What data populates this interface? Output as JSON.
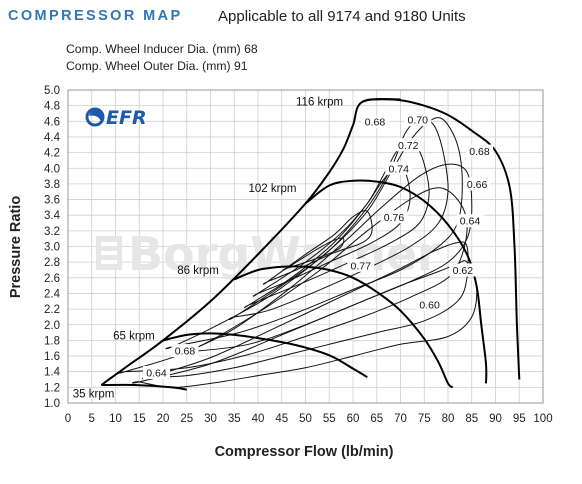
{
  "header": {
    "title": "COMPRESSOR MAP",
    "subtitle": "Applicable to all 9174 and 9180 Units"
  },
  "specs": {
    "inducer": "Comp. Wheel Inducer Dia. (mm) 68",
    "outer": "Comp. Wheel Outer Dia. (mm) 91"
  },
  "logo": {
    "text": "EFR",
    "icon": "turbo-swirl-icon",
    "color": "#1d5aa8"
  },
  "watermark": {
    "text": "BorgWarner"
  },
  "colors": {
    "title": "#2f77b8",
    "grid": "#cfcfcf",
    "lines": "#000000"
  },
  "chart_data": {
    "type": "line",
    "title": "",
    "xlabel": "Compressor Flow (lb/min)",
    "ylabel": "Pressure Ratio",
    "xlim": [
      0,
      100
    ],
    "ylim": [
      1.0,
      5.0
    ],
    "x_ticks": [
      "0",
      "5",
      "10",
      "15",
      "20",
      "25",
      "30",
      "35",
      "40",
      "45",
      "50",
      "55",
      "60",
      "65",
      "70",
      "75",
      "80",
      "85",
      "90",
      "95",
      "100"
    ],
    "y_ticks": [
      "1.0",
      "1.2",
      "1.4",
      "1.6",
      "1.8",
      "2.0",
      "2.2",
      "2.4",
      "2.6",
      "2.8",
      "3.0",
      "3.2",
      "3.4",
      "3.6",
      "3.8",
      "4.0",
      "4.2",
      "4.4",
      "4.6",
      "4.8",
      "5.0"
    ],
    "grid": true,
    "surge_line": {
      "name": "surge",
      "points": [
        [
          7,
          1.23
        ],
        [
          12,
          1.45
        ],
        [
          20,
          1.8
        ],
        [
          30,
          2.3
        ],
        [
          40,
          2.9
        ],
        [
          50,
          3.55
        ],
        [
          55,
          3.95
        ],
        [
          58,
          4.25
        ],
        [
          60,
          4.55
        ],
        [
          62,
          4.85
        ],
        [
          70,
          4.88
        ]
      ]
    },
    "speed_lines": [
      {
        "label": "35 krpm",
        "points": [
          [
            7,
            1.23
          ],
          [
            14,
            1.23
          ],
          [
            22,
            1.2
          ],
          [
            25,
            1.17
          ]
        ]
      },
      {
        "label": "65 krpm",
        "points": [
          [
            20,
            1.8
          ],
          [
            25,
            1.87
          ],
          [
            30,
            1.89
          ],
          [
            35,
            1.87
          ],
          [
            40,
            1.83
          ],
          [
            48,
            1.74
          ],
          [
            55,
            1.61
          ],
          [
            60,
            1.44
          ],
          [
            63,
            1.33
          ]
        ]
      },
      {
        "label": "86 krpm",
        "points": [
          [
            35,
            2.58
          ],
          [
            40,
            2.7
          ],
          [
            45,
            2.74
          ],
          [
            50,
            2.74
          ],
          [
            55,
            2.7
          ],
          [
            60,
            2.6
          ],
          [
            65,
            2.42
          ],
          [
            70,
            2.18
          ],
          [
            75,
            1.82
          ],
          [
            78,
            1.52
          ],
          [
            80,
            1.25
          ],
          [
            81,
            1.2
          ]
        ]
      },
      {
        "label": "102 krpm",
        "points": [
          [
            50,
            3.55
          ],
          [
            55,
            3.78
          ],
          [
            60,
            3.84
          ],
          [
            65,
            3.83
          ],
          [
            70,
            3.76
          ],
          [
            75,
            3.58
          ],
          [
            80,
            3.28
          ],
          [
            84,
            2.9
          ],
          [
            86,
            2.5
          ],
          [
            87,
            2.0
          ],
          [
            88,
            1.5
          ],
          [
            88,
            1.25
          ]
        ]
      },
      {
        "label": "116 krpm",
        "points": [
          [
            62,
            4.85
          ],
          [
            64,
            4.88
          ],
          [
            70,
            4.87
          ],
          [
            75,
            4.8
          ],
          [
            80,
            4.68
          ],
          [
            85,
            4.48
          ],
          [
            90,
            4.22
          ],
          [
            93,
            3.75
          ],
          [
            94,
            3.0
          ],
          [
            94.5,
            2.0
          ],
          [
            95,
            1.3
          ]
        ]
      }
    ],
    "efficiency_islands": [
      {
        "label": "0.60",
        "points": [
          [
            15,
            1.27
          ],
          [
            30,
            1.5
          ],
          [
            45,
            1.87
          ],
          [
            60,
            2.25
          ],
          [
            70,
            2.5
          ],
          [
            78,
            2.68
          ],
          [
            82,
            2.78
          ],
          [
            84,
            2.8
          ],
          [
            86,
            2.5
          ],
          [
            85,
            2.1
          ],
          [
            80,
            1.85
          ],
          [
            70,
            1.75
          ],
          [
            60,
            1.6
          ],
          [
            50,
            1.45
          ],
          [
            40,
            1.35
          ],
          [
            30,
            1.25
          ],
          [
            22,
            1.2
          ],
          [
            15,
            1.27
          ]
        ]
      },
      {
        "label": "0.62",
        "points": [
          [
            17,
            1.33
          ],
          [
            30,
            1.58
          ],
          [
            45,
            2.0
          ],
          [
            60,
            2.43
          ],
          [
            70,
            2.72
          ],
          [
            77,
            2.94
          ],
          [
            82,
            3.05
          ],
          [
            84,
            3.0
          ],
          [
            84,
            2.6
          ],
          [
            82,
            2.3
          ],
          [
            75,
            2.05
          ],
          [
            65,
            1.9
          ],
          [
            55,
            1.75
          ],
          [
            45,
            1.6
          ],
          [
            35,
            1.45
          ],
          [
            25,
            1.35
          ],
          [
            17,
            1.33
          ]
        ]
      },
      {
        "label": "0.64",
        "points": [
          [
            12,
            1.4
          ],
          [
            25,
            1.65
          ],
          [
            38,
            2.08
          ],
          [
            52,
            2.65
          ],
          [
            63,
            3.2
          ],
          [
            72,
            3.6
          ],
          [
            78,
            3.75
          ],
          [
            82,
            3.6
          ],
          [
            84,
            3.3
          ],
          [
            83,
            2.9
          ],
          [
            80,
            2.6
          ],
          [
            72,
            2.35
          ],
          [
            62,
            2.1
          ],
          [
            50,
            1.85
          ],
          [
            38,
            1.62
          ],
          [
            25,
            1.45
          ],
          [
            12,
            1.4
          ]
        ]
      },
      {
        "label": "0.66",
        "points": [
          [
            25,
            1.65
          ],
          [
            35,
            1.95
          ],
          [
            47,
            2.48
          ],
          [
            58,
            3.05
          ],
          [
            66,
            3.5
          ],
          [
            74,
            3.9
          ],
          [
            80,
            4.05
          ],
          [
            84,
            3.95
          ],
          [
            85,
            3.5
          ],
          [
            84,
            3.1
          ],
          [
            80,
            2.8
          ],
          [
            72,
            2.55
          ],
          [
            62,
            2.3
          ],
          [
            50,
            2.0
          ],
          [
            38,
            1.75
          ],
          [
            25,
            1.65
          ]
        ]
      },
      {
        "label": "0.68",
        "points": [
          [
            22,
            1.72
          ],
          [
            30,
            1.95
          ],
          [
            42,
            2.35
          ],
          [
            55,
            2.95
          ],
          [
            63,
            3.45
          ],
          [
            68,
            3.95
          ],
          [
            72,
            4.35
          ],
          [
            76,
            4.6
          ],
          [
            79,
            4.62
          ],
          [
            82,
            4.3
          ],
          [
            83,
            3.8
          ],
          [
            82,
            3.3
          ],
          [
            78,
            3.0
          ],
          [
            70,
            2.7
          ],
          [
            60,
            2.45
          ],
          [
            48,
            2.15
          ],
          [
            36,
            1.9
          ],
          [
            22,
            1.72
          ]
        ]
      },
      {
        "label": "0.70",
        "points": [
          [
            35,
            2.1
          ],
          [
            45,
            2.5
          ],
          [
            55,
            2.95
          ],
          [
            63,
            3.5
          ],
          [
            68,
            4.0
          ],
          [
            71,
            4.45
          ],
          [
            74,
            4.62
          ],
          [
            77,
            4.55
          ],
          [
            79,
            4.2
          ],
          [
            80,
            3.7
          ],
          [
            78,
            3.3
          ],
          [
            72,
            3.0
          ],
          [
            63,
            2.72
          ],
          [
            52,
            2.42
          ],
          [
            42,
            2.18
          ],
          [
            35,
            2.1
          ]
        ]
      },
      {
        "label": "0.72",
        "points": [
          [
            38,
            2.25
          ],
          [
            47,
            2.6
          ],
          [
            56,
            3.05
          ],
          [
            63,
            3.55
          ],
          [
            67,
            3.98
          ],
          [
            70,
            4.28
          ],
          [
            73,
            4.3
          ],
          [
            75,
            4.05
          ],
          [
            76,
            3.65
          ],
          [
            74,
            3.3
          ],
          [
            68,
            3.05
          ],
          [
            60,
            2.82
          ],
          [
            50,
            2.55
          ],
          [
            42,
            2.35
          ],
          [
            38,
            2.25
          ]
        ]
      },
      {
        "label": "0.74",
        "points": [
          [
            40,
            2.4
          ],
          [
            50,
            2.8
          ],
          [
            58,
            3.2
          ],
          [
            63,
            3.55
          ],
          [
            66,
            3.82
          ],
          [
            69,
            4.02
          ],
          [
            71,
            3.95
          ],
          [
            72,
            3.6
          ],
          [
            70,
            3.3
          ],
          [
            64,
            3.05
          ],
          [
            55,
            2.8
          ],
          [
            46,
            2.55
          ],
          [
            40,
            2.4
          ]
        ]
      },
      {
        "label": "0.76",
        "points": [
          [
            42,
            2.55
          ],
          [
            50,
            2.9
          ],
          [
            56,
            3.15
          ],
          [
            60,
            3.38
          ],
          [
            63,
            3.45
          ],
          [
            64,
            3.2
          ],
          [
            62,
            3.05
          ],
          [
            56,
            2.92
          ],
          [
            48,
            2.7
          ],
          [
            42,
            2.55
          ]
        ]
      },
      {
        "label": "0.77",
        "points": [
          [
            46,
            2.72
          ],
          [
            52,
            2.95
          ],
          [
            56,
            3.08
          ],
          [
            58,
            3.1
          ],
          [
            57,
            2.97
          ],
          [
            52,
            2.84
          ],
          [
            46,
            2.72
          ]
        ]
      }
    ],
    "efficiency_labels": [
      {
        "label": "0.68",
        "x": 22,
        "y": 1.67
      },
      {
        "label": "0.64",
        "x": 16,
        "y": 1.39
      },
      {
        "label": "0.68",
        "x": 62,
        "y": 4.6
      },
      {
        "label": "0.70",
        "x": 71,
        "y": 4.62
      },
      {
        "label": "0.72",
        "x": 69,
        "y": 4.3
      },
      {
        "label": "0.74",
        "x": 67,
        "y": 4.0
      },
      {
        "label": "0.76",
        "x": 66,
        "y": 3.38
      },
      {
        "label": "0.77",
        "x": 59,
        "y": 2.76
      },
      {
        "label": "0.68",
        "x": 84,
        "y": 4.22
      },
      {
        "label": "0.66",
        "x": 83.5,
        "y": 3.8
      },
      {
        "label": "0.64",
        "x": 82,
        "y": 3.33
      },
      {
        "label": "0.62",
        "x": 80.5,
        "y": 2.7
      },
      {
        "label": "0.60",
        "x": 73.5,
        "y": 2.26
      }
    ],
    "speed_label_positions": [
      {
        "label": "35 krpm",
        "x": 1,
        "y": 1.12
      },
      {
        "label": "65 krpm",
        "x": 9.5,
        "y": 1.86
      },
      {
        "label": "86 krpm",
        "x": 23,
        "y": 2.7
      },
      {
        "label": "102 krpm",
        "x": 38,
        "y": 3.75
      },
      {
        "label": "116 krpm",
        "x": 48,
        "y": 4.85
      }
    ]
  }
}
